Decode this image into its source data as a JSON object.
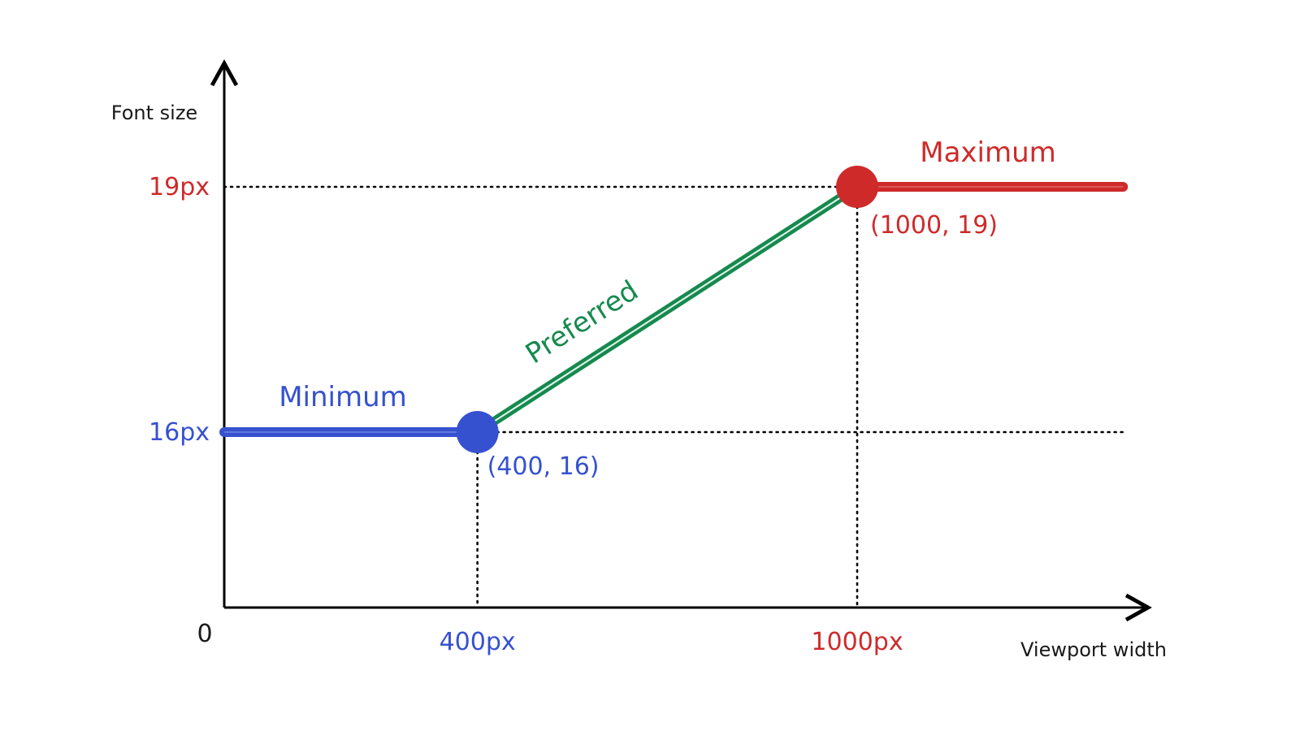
{
  "chart_data": {
    "type": "line",
    "ylabel": "Font size",
    "xlabel": "Viewport width",
    "origin_label": "0",
    "y_ticks": [
      {
        "value": 16,
        "label": "16px",
        "color": "#3651d0"
      },
      {
        "value": 19,
        "label": "19px",
        "color": "#cf2a2a"
      }
    ],
    "x_ticks": [
      {
        "value": 400,
        "label": "400px",
        "color": "#3651d0"
      },
      {
        "value": 1000,
        "label": "1000px",
        "color": "#cf2a2a"
      }
    ],
    "series": [
      {
        "name": "Minimum",
        "color": "#3651d0",
        "x": [
          0,
          400
        ],
        "y": [
          16,
          16
        ]
      },
      {
        "name": "Preferred",
        "color": "#168a4f",
        "x": [
          400,
          1000
        ],
        "y": [
          16,
          19
        ]
      },
      {
        "name": "Maximum",
        "color": "#cf2a2a",
        "x": [
          1000,
          1420
        ],
        "y": [
          19,
          19
        ]
      }
    ],
    "points": [
      {
        "x": 400,
        "y": 16,
        "label": "(400, 16)",
        "color": "#3651d0"
      },
      {
        "x": 1000,
        "y": 19,
        "label": "(1000, 19)",
        "color": "#cf2a2a"
      }
    ],
    "grid": "dotted guide lines at key points",
    "legend": "none"
  }
}
